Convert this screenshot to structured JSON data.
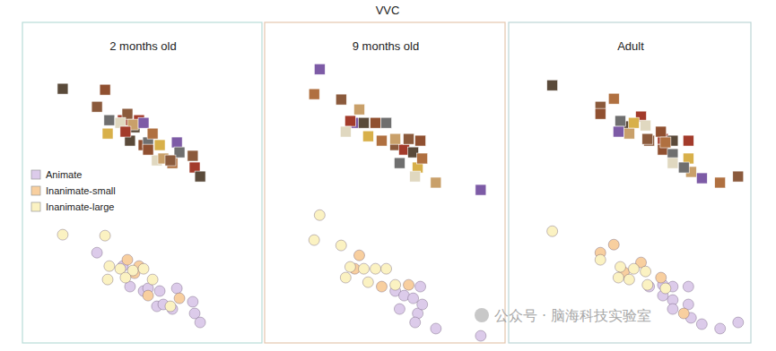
{
  "title": "VVC",
  "watermark": "公众号 · 脑海科技实验室",
  "chart_data": [
    {
      "type": "scatter",
      "title": "2 months old",
      "xlim": [
        0,
        100
      ],
      "ylim": [
        -2,
        237
      ],
      "tick_labels": false,
      "grid": false,
      "legend": "left",
      "series": [
        {
          "name": "Animate",
          "color": "#dccbea",
          "x": [
            30.6,
            41.5,
            44.5,
            50.2,
            52.1,
            57.0,
            55.8,
            58.5,
            64.2,
            62.3,
            70.9,
            71.7,
            74.0
          ],
          "values": [
            65.3,
            55.3,
            40.0,
            36.7,
            38.7,
            36.7,
            25.3,
            26.7,
            38.7,
            23.3,
            28.7,
            20.0,
            13.3
          ]
        },
        {
          "name": "Inanimate-small",
          "color": "#f8cf9f",
          "x": [
            43.4,
            48.3,
            46.4,
            52.1,
            65.3
          ],
          "values": [
            60.0,
            55.3,
            50.0,
            33.3,
            31.3
          ]
        },
        {
          "name": "Inanimate-large",
          "color": "#fbf2c2",
          "x": [
            16.2,
            34.0,
            35.8,
            35.1,
            40.4,
            45.7,
            50.2,
            54.0,
            61.5,
            42.6
          ],
          "values": [
            78.7,
            78.0,
            55.3,
            45.3,
            53.3,
            52.0,
            53.3,
            45.3,
            25.3,
            46.7
          ]
        }
      ]
    },
    {
      "type": "scatter",
      "title": "9 months old",
      "xlim": [
        0,
        100
      ],
      "ylim": [
        -2,
        237
      ],
      "tick_labels": false,
      "grid": false,
      "series": [
        {
          "name": "Animate",
          "color": "#dccbea",
          "x": [
            54.0,
            57.7,
            61.5,
            64.5,
            55.8,
            63.4,
            62.3,
            71.0,
            89.8,
            65.3
          ],
          "values": [
            36.7,
            33.3,
            31.3,
            40.0,
            23.3,
            20.0,
            13.3,
            8.7,
            3.3,
            26.7
          ]
        },
        {
          "name": "Inanimate-small",
          "color": "#f8cf9f",
          "x": [
            38.9,
            37.0,
            48.3,
            59.6
          ],
          "values": [
            63.3,
            53.3,
            40.0,
            41.3
          ]
        },
        {
          "name": "Inanimate-large",
          "color": "#fbf2c2",
          "x": [
            22.3,
            20.0,
            31.3,
            35.1,
            40.8,
            45.7,
            50.2,
            42.6,
            33.2,
            54.0
          ],
          "values": [
            93.3,
            74.7,
            70.7,
            54.7,
            53.3,
            53.3,
            53.3,
            43.3,
            46.7,
            41.3
          ]
        }
      ]
    },
    {
      "type": "scatter",
      "title": "Adult",
      "xlim": [
        0,
        100
      ],
      "ylim": [
        -2,
        237
      ],
      "tick_labels": false,
      "grid": false,
      "series": [
        {
          "name": "Animate",
          "color": "#dccbea",
          "x": [
            57.7,
            63.4,
            67.5,
            63.4,
            67.5,
            74.0,
            67.5,
            75.1,
            79.6,
            87.2,
            94.7,
            74.0
          ],
          "values": [
            40.0,
            41.3,
            40.0,
            33.3,
            30.0,
            26.7,
            23.3,
            16.7,
            12.0,
            8.7,
            13.3,
            40.0
          ]
        },
        {
          "name": "Inanimate-small",
          "color": "#f8cf9f",
          "x": [
            43.0,
            37.4,
            54.3,
            47.2,
            62.6,
            72.1
          ],
          "values": [
            71.3,
            65.3,
            58.0,
            50.7,
            46.7,
            20.0
          ]
        },
        {
          "name": "Inanimate-large",
          "color": "#fbf2c2",
          "x": [
            17.4,
            37.4,
            45.7,
            51.3,
            56.2,
            49.4,
            44.9,
            64.5,
            57.0
          ],
          "values": [
            81.3,
            60.0,
            54.7,
            53.3,
            51.3,
            45.3,
            46.7,
            38.7,
            41.3
          ]
        }
      ]
    }
  ]
}
